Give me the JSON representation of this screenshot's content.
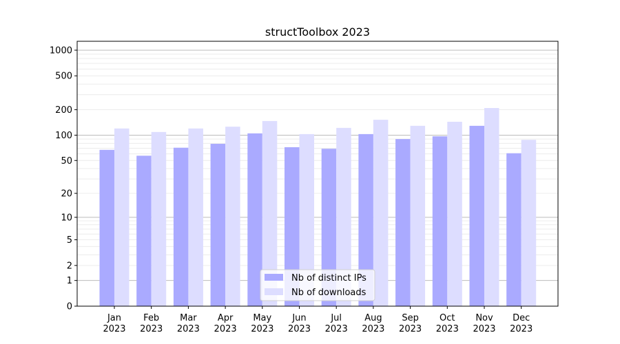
{
  "chart_data": {
    "type": "bar",
    "title": "structToolbox 2023",
    "xlabel": "",
    "ylabel": "",
    "yscale": "log(x+1)",
    "ylim": [
      0,
      1300
    ],
    "yticks": [
      0,
      1,
      2,
      5,
      10,
      20,
      50,
      100,
      200,
      500,
      1000
    ],
    "grid": true,
    "legend_position": "bottom-center",
    "categories": [
      "Jan\n2023",
      "Feb\n2023",
      "Mar\n2023",
      "Apr\n2023",
      "May\n2023",
      "Jun\n2023",
      "Jul\n2023",
      "Aug\n2023",
      "Sep\n2023",
      "Oct\n2023",
      "Nov\n2023",
      "Dec\n2023"
    ],
    "series": [
      {
        "name": "Nb of distinct IPs",
        "color": "#aaaaff",
        "values": [
          67,
          57,
          71,
          79,
          105,
          72,
          69,
          103,
          90,
          97,
          129,
          61
        ]
      },
      {
        "name": "Nb of downloads",
        "color": "#ddddff",
        "values": [
          120,
          109,
          120,
          126,
          147,
          103,
          122,
          152,
          129,
          144,
          209,
          88
        ]
      }
    ]
  }
}
